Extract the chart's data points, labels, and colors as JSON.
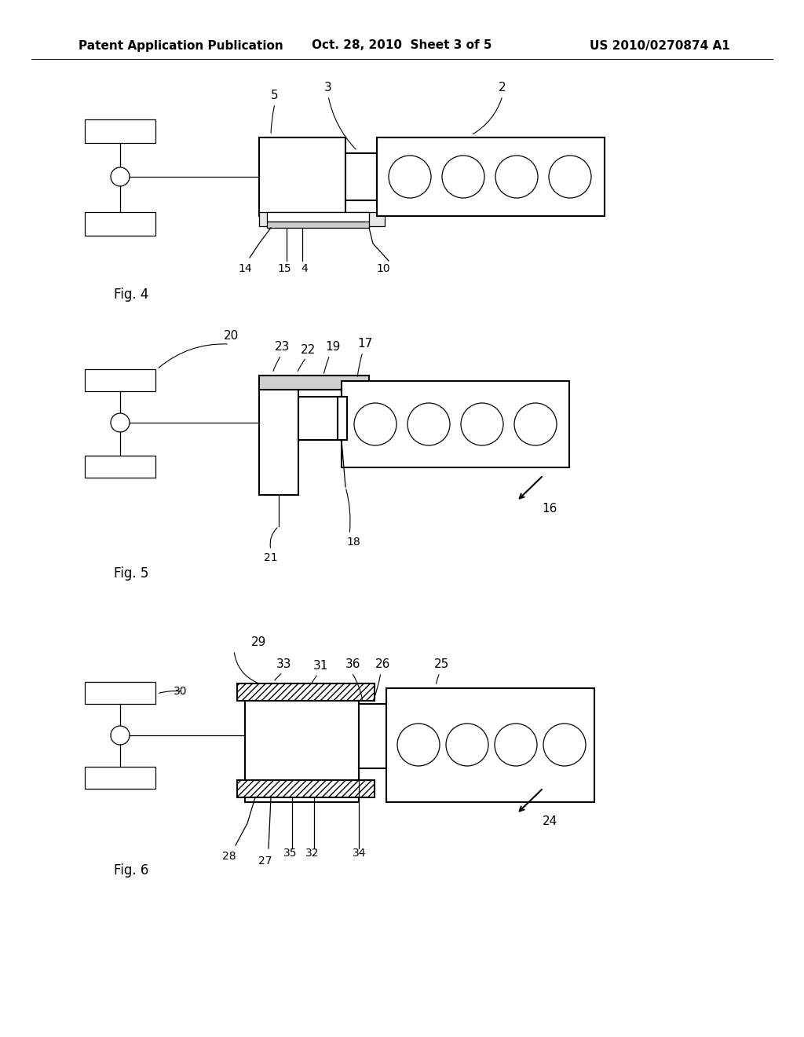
{
  "background_color": "#ffffff",
  "header_left": "Patent Application Publication",
  "header_center": "Oct. 28, 2010  Sheet 3 of 5",
  "header_right": "US 2010/0270874 A1",
  "line_color": "#000000",
  "line_width": 1.5,
  "thin_line": 0.9,
  "annotation_lw": 0.8
}
